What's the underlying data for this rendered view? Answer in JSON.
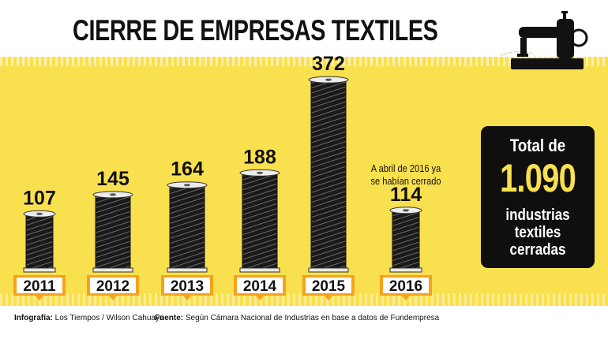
{
  "header": {
    "title": "CIERRE DE EMPRESAS TEXTILES"
  },
  "chart_data": {
    "type": "bar",
    "categories": [
      "2011",
      "2012",
      "2013",
      "2014",
      "2015",
      "2016"
    ],
    "values": [
      107,
      145,
      164,
      188,
      372,
      114
    ],
    "title": "CIERRE DE EMPRESAS TEXTILES",
    "xlabel": "",
    "ylabel": "",
    "annotations": [
      "A abril de 2016 ya se habían cerrado"
    ]
  },
  "note": {
    "text": "A abril de 2016 ya se habían cerrado"
  },
  "total": {
    "label": "Total de",
    "value": "1.090",
    "description": "industrias textiles cerradas"
  },
  "footer": {
    "credit_label": "Infografía:",
    "credit_text": "Los Tiempos / Wilson Cahuaya",
    "source_label": "Fuente:",
    "source_text": "Según Cámara Nacional de Industrias en base a datos de  Fundempresa"
  },
  "colors": {
    "accent": "#f9e04e",
    "spool": "#1a1a1a",
    "year_tag": "#f7a21b",
    "box": "#0f0f0f"
  },
  "icons": {
    "machine": "sewing-machine-icon"
  }
}
